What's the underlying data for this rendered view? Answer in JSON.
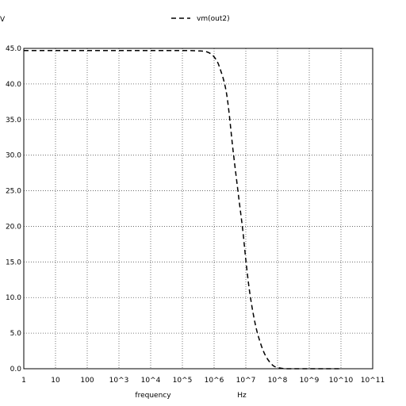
{
  "chart_data": {
    "type": "line",
    "title": "",
    "ylabel": "V",
    "xlabel": "frequency",
    "xunit": "Hz",
    "xscale": "log",
    "xlim": [
      1,
      100000000000
    ],
    "ylim": [
      0,
      45
    ],
    "grid": true,
    "legend_position": "top-center",
    "x_tick_labels": [
      "1",
      "10",
      "100",
      "10^3",
      "10^4",
      "10^5",
      "10^6",
      "10^7",
      "10^8",
      "10^9",
      "10^10",
      "10^11"
    ],
    "y_ticks": [
      0,
      5,
      10,
      15,
      20,
      25,
      30,
      35,
      40,
      45
    ],
    "y_tick_labels": [
      "0.0",
      "5.0",
      "10.0",
      "15.0",
      "20.0",
      "25.0",
      "30.0",
      "35.0",
      "40.0",
      "45.0"
    ],
    "series": [
      {
        "name": "vm(out2)",
        "color": "#000000",
        "dash": "dashed",
        "x": [
          1,
          10,
          100,
          1000,
          10000,
          100000,
          300000,
          600000,
          1000000,
          1500000,
          2500000,
          4000000,
          6000000,
          8000000,
          10000000,
          13000000,
          18000000,
          25000000,
          40000000,
          70000000,
          120000000,
          200000000,
          400000000,
          1000000000,
          3000000000,
          10000000000
        ],
        "y": [
          44.7,
          44.7,
          44.7,
          44.7,
          44.7,
          44.7,
          44.65,
          44.5,
          43.8,
          42.3,
          38.5,
          30.5,
          24.0,
          19.5,
          15.3,
          11.0,
          7.2,
          4.5,
          2.0,
          0.5,
          0.1,
          0.0,
          0.0,
          0.0,
          0.0,
          0.0
        ]
      }
    ]
  }
}
